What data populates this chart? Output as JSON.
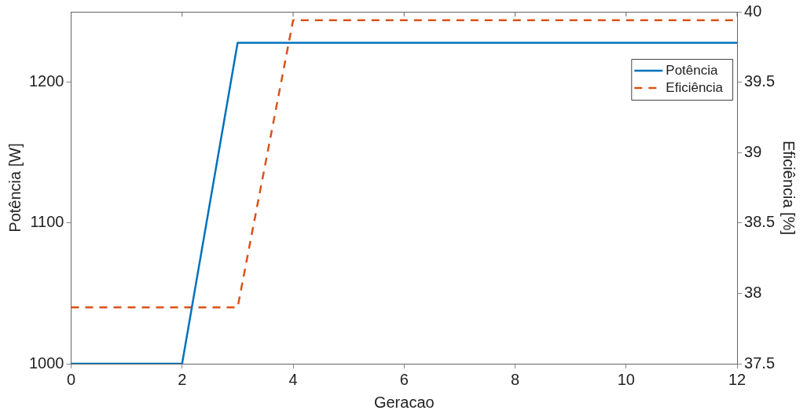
{
  "chart_data": {
    "type": "line",
    "xlabel": "Geracao",
    "ylabel": "Potência [W]",
    "y2label": "Eficiência [%]",
    "x": [
      0,
      1,
      2,
      3,
      4,
      5,
      6,
      7,
      8,
      9,
      10,
      11,
      12
    ],
    "series": [
      {
        "name": "Potência",
        "color": "#0072bd",
        "line_style": "solid",
        "values": [
          1000,
          1000,
          1000,
          1228,
          1228,
          1228,
          1228,
          1228,
          1228,
          1228,
          1228,
          1228,
          1228
        ]
      },
      {
        "name": "Eficiência",
        "color": "#d95319",
        "line_style": "dashed",
        "axis": "y2",
        "values": [
          37.9,
          37.9,
          37.9,
          37.9,
          39.94,
          39.94,
          39.94,
          39.94,
          39.94,
          39.94,
          39.94,
          39.94,
          39.94
        ]
      }
    ],
    "xlim": [
      0,
      12
    ],
    "xticks": [
      0,
      2,
      4,
      6,
      8,
      10,
      12
    ],
    "ylim": [
      1000,
      1250
    ],
    "yticks": [
      1000,
      1100,
      1200
    ],
    "y2lim": [
      37.5,
      40
    ],
    "y2ticks": [
      37.5,
      38,
      38.5,
      39,
      39.5,
      40
    ],
    "grid": false,
    "legend": "top right",
    "marker": "none"
  }
}
